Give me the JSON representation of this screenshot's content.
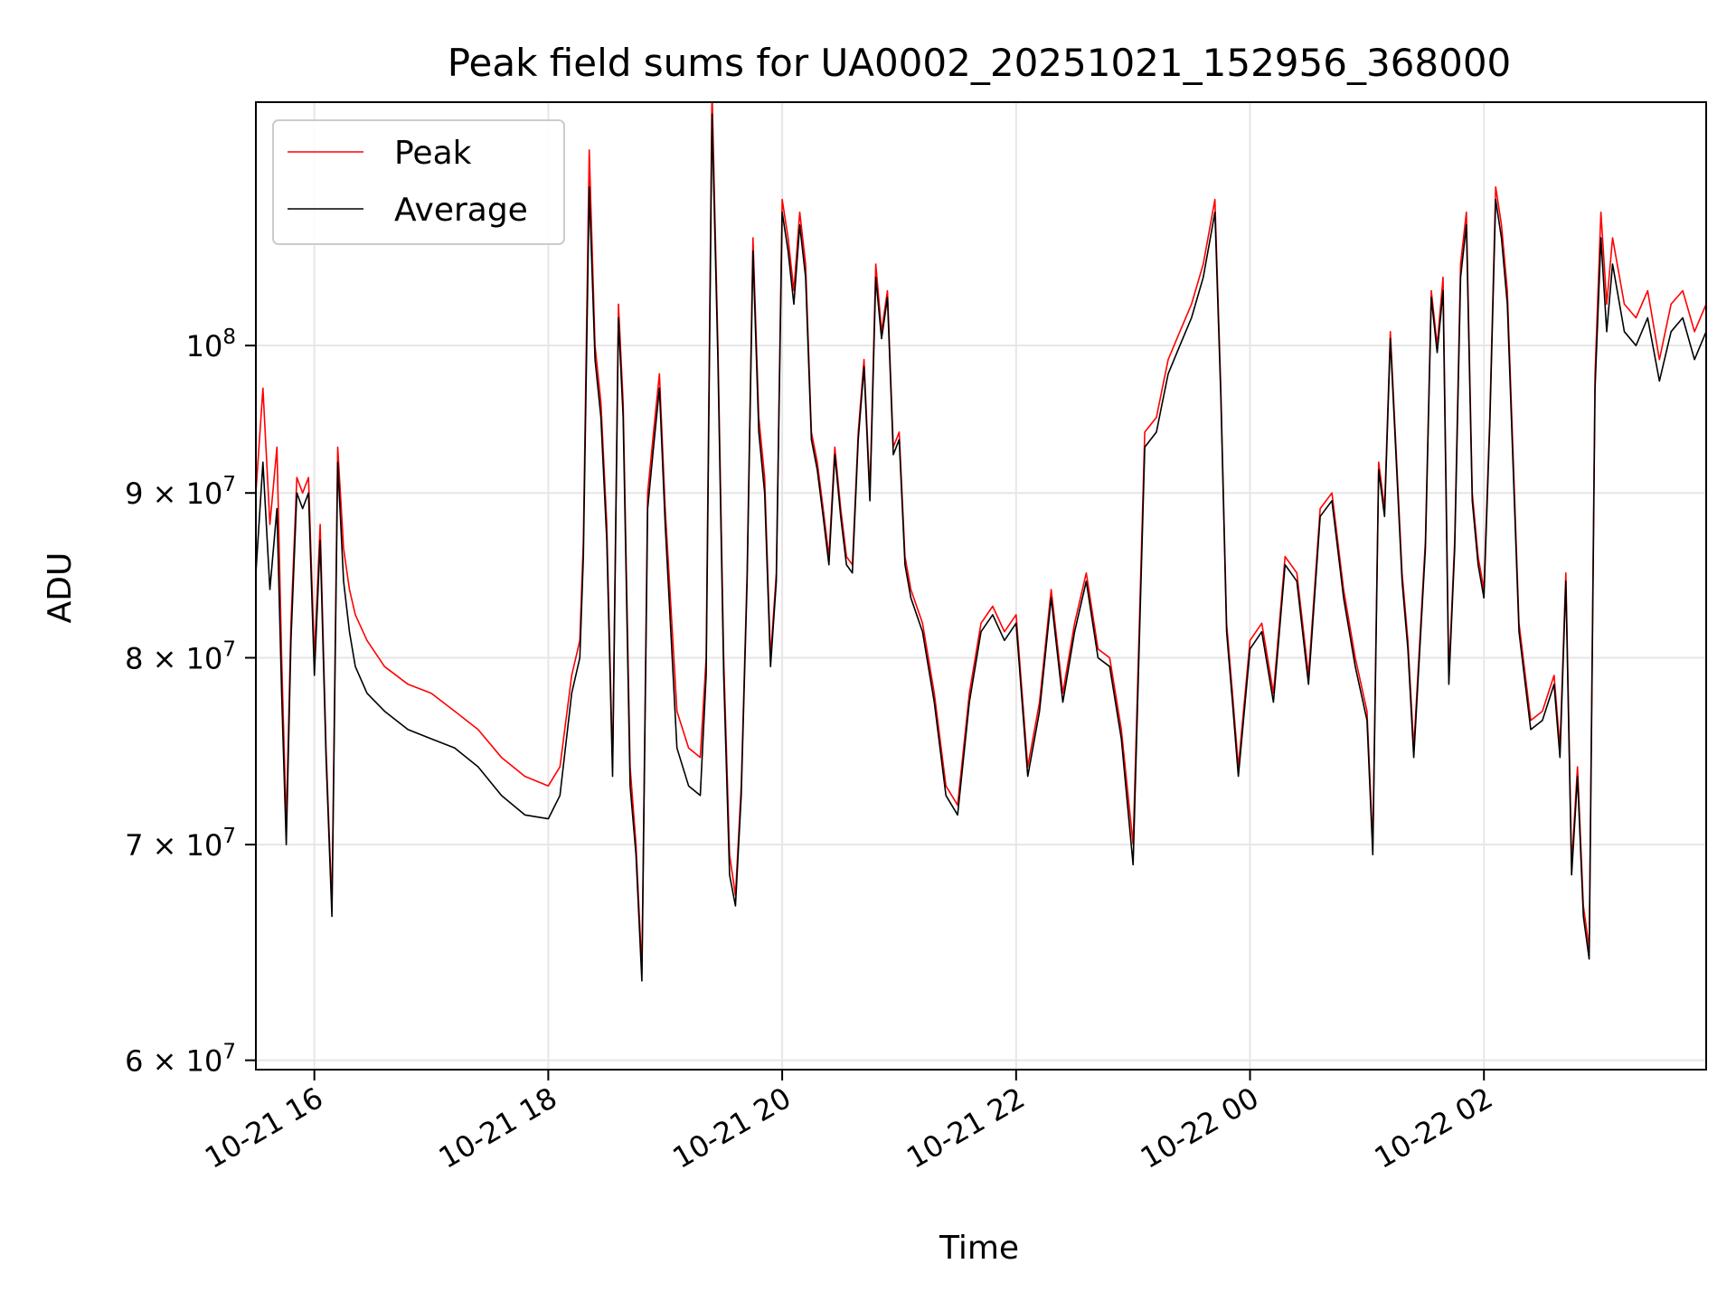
{
  "chart_data": {
    "type": "line",
    "title": "Peak field sums for UA0002_20251021_152956_368000",
    "xlabel": "Time",
    "ylabel": "ADU",
    "yscale": "log",
    "ylim": [
      59600000,
      119000000
    ],
    "xlim": [
      15.5,
      27.9
    ],
    "grid": true,
    "legend_position": "upper-left",
    "x_ticks": [
      {
        "value": 16,
        "label": "10-21 16"
      },
      {
        "value": 18,
        "label": "10-21 18"
      },
      {
        "value": 20,
        "label": "10-21 20"
      },
      {
        "value": 22,
        "label": "10-21 22"
      },
      {
        "value": 24,
        "label": "10-22 00"
      },
      {
        "value": 26,
        "label": "10-22 02"
      }
    ],
    "y_ticks": [
      {
        "value": 60000000,
        "mantissa": "6",
        "exponent": "7"
      },
      {
        "value": 70000000,
        "mantissa": "7",
        "exponent": "7"
      },
      {
        "value": 80000000,
        "mantissa": "8",
        "exponent": "7"
      },
      {
        "value": 90000000,
        "mantissa": "9",
        "exponent": "7"
      },
      {
        "value": 100000000,
        "mantissa": "",
        "exponent": "8"
      }
    ],
    "series": [
      {
        "name": "Peak",
        "color": "#ff0000",
        "x": [
          15.5,
          15.56,
          15.62,
          15.68,
          15.72,
          15.76,
          15.8,
          15.85,
          15.9,
          15.95,
          16.0,
          16.05,
          16.1,
          16.15,
          16.2,
          16.25,
          16.3,
          16.35,
          16.45,
          16.6,
          16.8,
          17.0,
          17.2,
          17.4,
          17.6,
          17.8,
          18.0,
          18.1,
          18.2,
          18.27,
          18.3,
          18.35,
          18.4,
          18.45,
          18.5,
          18.55,
          18.6,
          18.64,
          18.7,
          18.75,
          18.8,
          18.85,
          18.9,
          18.95,
          19.0,
          19.1,
          19.2,
          19.3,
          19.35,
          19.4,
          19.45,
          19.5,
          19.55,
          19.6,
          19.65,
          19.7,
          19.75,
          19.8,
          19.85,
          19.9,
          19.95,
          20.0,
          20.05,
          20.1,
          20.15,
          20.2,
          20.25,
          20.3,
          20.35,
          20.4,
          20.45,
          20.5,
          20.55,
          20.6,
          20.65,
          20.7,
          20.75,
          20.8,
          20.85,
          20.9,
          20.95,
          21.0,
          21.05,
          21.1,
          21.2,
          21.3,
          21.4,
          21.5,
          21.6,
          21.7,
          21.8,
          21.9,
          22.0,
          22.1,
          22.2,
          22.3,
          22.4,
          22.5,
          22.6,
          22.7,
          22.8,
          22.9,
          23.0,
          23.1,
          23.2,
          23.25,
          23.3,
          23.4,
          23.5,
          23.6,
          23.7,
          23.75,
          23.8,
          23.85,
          23.9,
          24.0,
          24.1,
          24.2,
          24.3,
          24.4,
          24.5,
          24.6,
          24.7,
          24.8,
          24.9,
          25.0,
          25.05,
          25.1,
          25.15,
          25.2,
          25.3,
          25.35,
          25.4,
          25.5,
          25.55,
          25.6,
          25.65,
          25.7,
          25.75,
          25.8,
          25.85,
          25.9,
          25.95,
          26.0,
          26.05,
          26.1,
          26.15,
          26.2,
          26.3,
          26.4,
          26.5,
          26.6,
          26.65,
          26.7,
          26.75,
          26.8,
          26.85,
          26.9,
          26.95,
          27.0,
          27.05,
          27.1,
          27.2,
          27.3,
          27.4,
          27.5,
          27.6,
          27.7,
          27.8,
          27.9
        ],
        "values": [
          90000000,
          97000000,
          88000000,
          93000000,
          80000000,
          71000000,
          82000000,
          91000000,
          90000000,
          91000000,
          80000000,
          88000000,
          75000000,
          67000000,
          93000000,
          86500000,
          84000000,
          82500000,
          81000000,
          79500000,
          78500000,
          78000000,
          77000000,
          76000000,
          74500000,
          73500000,
          73000000,
          74000000,
          79000000,
          81000000,
          87000000,
          115000000,
          100000000,
          96000000,
          88000000,
          74000000,
          103000000,
          96000000,
          74000000,
          70000000,
          64000000,
          90000000,
          94000000,
          98000000,
          89000000,
          77000000,
          75000000,
          74500000,
          80000000,
          120000000,
          100000000,
          80000000,
          69500000,
          67500000,
          73000000,
          85000000,
          108000000,
          95000000,
          91000000,
          80000000,
          85000000,
          111000000,
          108000000,
          104000000,
          110000000,
          106000000,
          94000000,
          92000000,
          89000000,
          86000000,
          93000000,
          89000000,
          86000000,
          85500000,
          94000000,
          99000000,
          90000000,
          106000000,
          101000000,
          104000000,
          93000000,
          94000000,
          86000000,
          84000000,
          82000000,
          78000000,
          73000000,
          72000000,
          78000000,
          82000000,
          83000000,
          81500000,
          82500000,
          74000000,
          77500000,
          84000000,
          78000000,
          82000000,
          85000000,
          80500000,
          80000000,
          76000000,
          70000000,
          94000000,
          95000000,
          97000000,
          99000000,
          101000000,
          103000000,
          106000000,
          111000000,
          97000000,
          82000000,
          78000000,
          74000000,
          81000000,
          82000000,
          78000000,
          86000000,
          85000000,
          79000000,
          89000000,
          90000000,
          84000000,
          80000000,
          77000000,
          70000000,
          92000000,
          89000000,
          101000000,
          85000000,
          81000000,
          75000000,
          87000000,
          104000000,
          100000000,
          105000000,
          79000000,
          87000000,
          106000000,
          110000000,
          90000000,
          86000000,
          84000000,
          95000000,
          112000000,
          109000000,
          104000000,
          82000000,
          76500000,
          77000000,
          79000000,
          75000000,
          85000000,
          69000000,
          74000000,
          67000000,
          65000000,
          98000000,
          110000000,
          103000000,
          108000000,
          103000000,
          102000000,
          104000000,
          99000000,
          103000000,
          104000000,
          101000000,
          103000000
        ]
      },
      {
        "name": "Average",
        "color": "#000000",
        "x": [
          15.5,
          15.56,
          15.62,
          15.68,
          15.72,
          15.76,
          15.8,
          15.85,
          15.9,
          15.95,
          16.0,
          16.05,
          16.1,
          16.15,
          16.2,
          16.25,
          16.3,
          16.35,
          16.45,
          16.6,
          16.8,
          17.0,
          17.2,
          17.4,
          17.6,
          17.8,
          18.0,
          18.1,
          18.2,
          18.27,
          18.3,
          18.35,
          18.4,
          18.45,
          18.5,
          18.55,
          18.6,
          18.64,
          18.7,
          18.75,
          18.8,
          18.85,
          18.9,
          18.95,
          19.0,
          19.1,
          19.2,
          19.3,
          19.35,
          19.4,
          19.45,
          19.5,
          19.55,
          19.6,
          19.65,
          19.7,
          19.75,
          19.8,
          19.85,
          19.9,
          19.95,
          20.0,
          20.05,
          20.1,
          20.15,
          20.2,
          20.25,
          20.3,
          20.35,
          20.4,
          20.45,
          20.5,
          20.55,
          20.6,
          20.65,
          20.7,
          20.75,
          20.8,
          20.85,
          20.9,
          20.95,
          21.0,
          21.05,
          21.1,
          21.2,
          21.3,
          21.4,
          21.5,
          21.6,
          21.7,
          21.8,
          21.9,
          22.0,
          22.1,
          22.2,
          22.3,
          22.4,
          22.5,
          22.6,
          22.7,
          22.8,
          22.9,
          23.0,
          23.1,
          23.2,
          23.25,
          23.3,
          23.4,
          23.5,
          23.6,
          23.7,
          23.75,
          23.8,
          23.85,
          23.9,
          24.0,
          24.1,
          24.2,
          24.3,
          24.4,
          24.5,
          24.6,
          24.7,
          24.8,
          24.9,
          25.0,
          25.05,
          25.1,
          25.15,
          25.2,
          25.3,
          25.35,
          25.4,
          25.5,
          25.55,
          25.6,
          25.65,
          25.7,
          25.75,
          25.8,
          25.85,
          25.9,
          25.95,
          26.0,
          26.05,
          26.1,
          26.15,
          26.2,
          26.3,
          26.4,
          26.5,
          26.6,
          26.65,
          26.7,
          26.75,
          26.8,
          26.85,
          26.9,
          26.95,
          27.0,
          27.05,
          27.1,
          27.2,
          27.3,
          27.4,
          27.5,
          27.6,
          27.7,
          27.8,
          27.9
        ],
        "values": [
          85000000,
          92000000,
          84000000,
          89000000,
          78000000,
          70000000,
          81000000,
          90000000,
          89000000,
          90000000,
          79000000,
          87000000,
          74500000,
          66500000,
          92000000,
          84500000,
          81500000,
          79500000,
          78000000,
          77000000,
          76000000,
          75500000,
          75000000,
          74000000,
          72500000,
          71500000,
          71300000,
          72500000,
          78000000,
          80000000,
          86000000,
          112000000,
          99000000,
          95000000,
          87000000,
          73500000,
          102000000,
          95000000,
          73000000,
          69500000,
          63500000,
          89000000,
          93000000,
          97000000,
          88000000,
          75000000,
          73000000,
          72500000,
          79000000,
          118000000,
          99000000,
          79000000,
          68500000,
          67000000,
          72500000,
          84500000,
          107000000,
          94000000,
          90000000,
          79500000,
          84500000,
          110000000,
          107000000,
          103000000,
          109000000,
          105000000,
          93500000,
          91500000,
          88500000,
          85500000,
          92500000,
          88500000,
          85500000,
          85000000,
          93500000,
          98500000,
          89500000,
          105000000,
          100500000,
          103500000,
          92500000,
          93500000,
          85500000,
          83500000,
          81500000,
          77500000,
          72500000,
          71500000,
          77500000,
          81500000,
          82500000,
          81000000,
          82000000,
          73500000,
          77000000,
          83500000,
          77500000,
          81500000,
          84500000,
          80000000,
          79500000,
          75500000,
          69000000,
          93000000,
          94000000,
          96000000,
          98000000,
          100000000,
          102000000,
          105000000,
          110000000,
          96500000,
          81500000,
          77500000,
          73500000,
          80500000,
          81500000,
          77500000,
          85500000,
          84500000,
          78500000,
          88500000,
          89500000,
          83500000,
          79500000,
          76500000,
          69500000,
          91500000,
          88500000,
          100500000,
          84500000,
          80500000,
          74500000,
          86500000,
          103500000,
          99500000,
          104000000,
          78500000,
          86500000,
          105000000,
          109000000,
          89500000,
          85500000,
          83500000,
          94500000,
          111000000,
          108000000,
          103000000,
          81500000,
          76000000,
          76500000,
          78500000,
          74500000,
          84500000,
          68500000,
          73500000,
          66500000,
          64500000,
          97000000,
          108000000,
          101000000,
          106000000,
          101000000,
          100000000,
          102000000,
          97500000,
          101000000,
          102000000,
          99000000,
          101000000
        ]
      }
    ]
  }
}
